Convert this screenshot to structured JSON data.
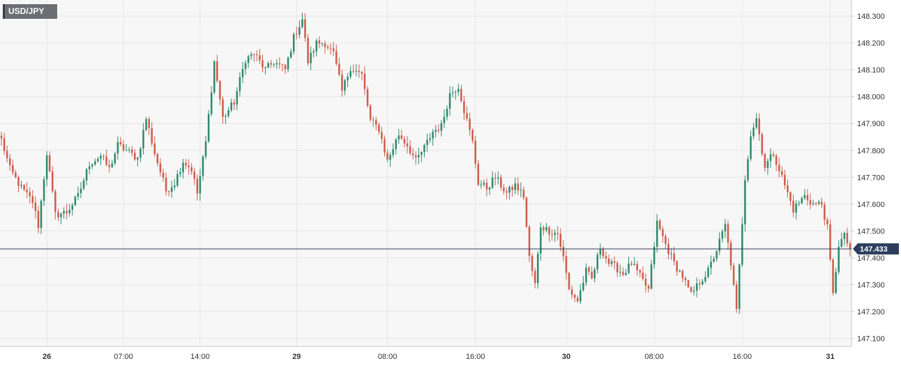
{
  "chart_data": {
    "type": "candlestick",
    "symbol": "USD/JPY",
    "current_price": 147.433,
    "current_price_label": "147.433",
    "ylim": [
      147.07,
      148.36
    ],
    "y_ticks": [
      "147.100",
      "147.200",
      "147.300",
      "147.400",
      "147.500",
      "147.600",
      "147.700",
      "147.800",
      "147.900",
      "148.000",
      "148.100",
      "148.200",
      "148.300"
    ],
    "x_ticks": [
      {
        "label": "26",
        "bar": 16,
        "bold": true
      },
      {
        "label": "07:00",
        "bar": 43,
        "bold": false
      },
      {
        "label": "14:00",
        "bar": 70,
        "bold": false
      },
      {
        "label": "29",
        "bar": 104,
        "bold": true
      },
      {
        "label": "08:00",
        "bar": 136,
        "bold": false
      },
      {
        "label": "16:00",
        "bar": 167,
        "bold": false
      },
      {
        "label": "30",
        "bar": 199,
        "bold": true
      },
      {
        "label": "08:00",
        "bar": 230,
        "bold": false
      },
      {
        "label": "16:00",
        "bar": 261,
        "bold": false
      },
      {
        "label": "31",
        "bar": 292,
        "bold": true
      }
    ],
    "anchors": [
      [
        0,
        147.84
      ],
      [
        3,
        147.73
      ],
      [
        7,
        147.66
      ],
      [
        11,
        147.61
      ],
      [
        13,
        147.52
      ],
      [
        16,
        147.79
      ],
      [
        19,
        147.56
      ],
      [
        23,
        147.57
      ],
      [
        27,
        147.63
      ],
      [
        31,
        147.75
      ],
      [
        35,
        147.78
      ],
      [
        38,
        147.73
      ],
      [
        41,
        147.82
      ],
      [
        44,
        147.8
      ],
      [
        48,
        147.77
      ],
      [
        51,
        147.92
      ],
      [
        54,
        147.79
      ],
      [
        58,
        147.65
      ],
      [
        61,
        147.68
      ],
      [
        64,
        147.76
      ],
      [
        67,
        147.73
      ],
      [
        69,
        147.64
      ],
      [
        72,
        147.83
      ],
      [
        75,
        148.13
      ],
      [
        78,
        147.92
      ],
      [
        82,
        147.98
      ],
      [
        86,
        148.14
      ],
      [
        89,
        148.16
      ],
      [
        93,
        148.1
      ],
      [
        96,
        148.13
      ],
      [
        100,
        148.1
      ],
      [
        103,
        148.22
      ],
      [
        106,
        148.29
      ],
      [
        108,
        148.13
      ],
      [
        111,
        148.2
      ],
      [
        114,
        148.2
      ],
      [
        117,
        148.16
      ],
      [
        120,
        148.02
      ],
      [
        123,
        148.11
      ],
      [
        127,
        148.08
      ],
      [
        130,
        147.91
      ],
      [
        133,
        147.88
      ],
      [
        136,
        147.76
      ],
      [
        140,
        147.86
      ],
      [
        143,
        147.82
      ],
      [
        146,
        147.76
      ],
      [
        149,
        147.81
      ],
      [
        152,
        147.87
      ],
      [
        155,
        147.89
      ],
      [
        158,
        148.01
      ],
      [
        161,
        148.04
      ],
      [
        163,
        147.95
      ],
      [
        166,
        147.83
      ],
      [
        168,
        147.68
      ],
      [
        171,
        147.66
      ],
      [
        174,
        147.7
      ],
      [
        178,
        147.64
      ],
      [
        181,
        147.67
      ],
      [
        184,
        147.63
      ],
      [
        186,
        147.4
      ],
      [
        188,
        147.3
      ],
      [
        190,
        147.52
      ],
      [
        193,
        147.5
      ],
      [
        196,
        147.49
      ],
      [
        198,
        147.4
      ],
      [
        200,
        147.28
      ],
      [
        203,
        147.24
      ],
      [
        206,
        147.35
      ],
      [
        208,
        147.32
      ],
      [
        211,
        147.44
      ],
      [
        214,
        147.38
      ],
      [
        217,
        147.36
      ],
      [
        219,
        147.34
      ],
      [
        222,
        147.38
      ],
      [
        225,
        147.33
      ],
      [
        228,
        147.28
      ],
      [
        231,
        147.53
      ],
      [
        234,
        147.45
      ],
      [
        237,
        147.38
      ],
      [
        240,
        147.33
      ],
      [
        243,
        147.26
      ],
      [
        246,
        147.31
      ],
      [
        249,
        147.35
      ],
      [
        252,
        147.43
      ],
      [
        255,
        147.52
      ],
      [
        257,
        147.38
      ],
      [
        259,
        147.2
      ],
      [
        262,
        147.7
      ],
      [
        264,
        147.86
      ],
      [
        266,
        147.92
      ],
      [
        269,
        147.74
      ],
      [
        272,
        147.79
      ],
      [
        276,
        147.67
      ],
      [
        279,
        147.58
      ],
      [
        283,
        147.63
      ],
      [
        286,
        147.6
      ],
      [
        289,
        147.6
      ],
      [
        291,
        147.51
      ],
      [
        293,
        147.26
      ],
      [
        295,
        147.45
      ],
      [
        297,
        147.48
      ],
      [
        299,
        147.433
      ]
    ]
  }
}
